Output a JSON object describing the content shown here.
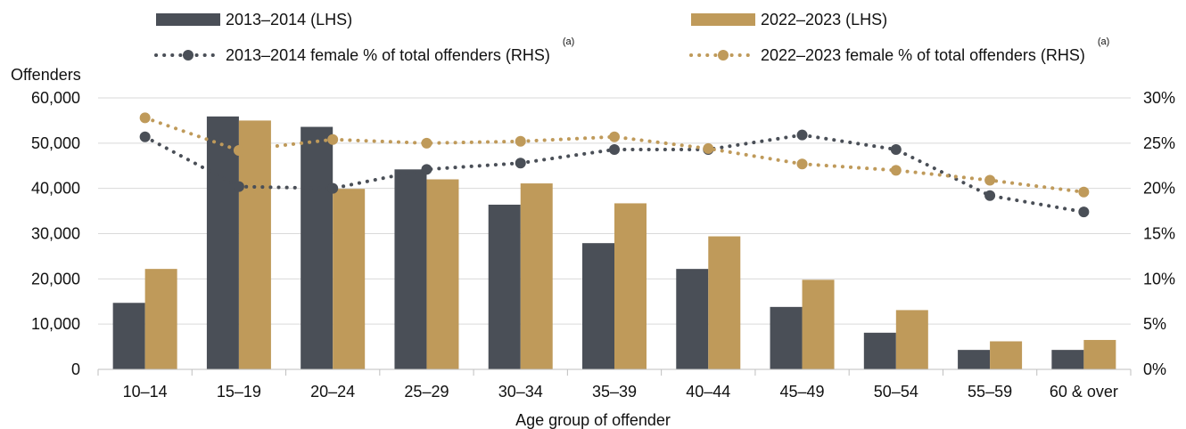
{
  "chart_data": {
    "type": "bar",
    "xlabel": "Age group of offender",
    "ylabel": "Offenders",
    "categories": [
      "10–14",
      "15–19",
      "20–24",
      "25–29",
      "30–34",
      "35–39",
      "40–44",
      "45–49",
      "50–54",
      "55–59",
      "60 & over"
    ],
    "ylim": [
      0,
      60000
    ],
    "y2lim": [
      0,
      30
    ],
    "y_ticks": [
      "0",
      "10,000",
      "20,000",
      "30,000",
      "40,000",
      "50,000",
      "60,000"
    ],
    "y2_ticks": [
      "0%",
      "5%",
      "10%",
      "15%",
      "20%",
      "25%",
      "30%"
    ],
    "series": [
      {
        "name": "2013–2014  (LHS)",
        "kind": "bar",
        "axis": "left",
        "color": "#4a4f57",
        "values": [
          14700,
          55900,
          53600,
          44200,
          36400,
          27900,
          22200,
          13800,
          8100,
          4300,
          4300
        ]
      },
      {
        "name": "2022–2023  (LHS)",
        "kind": "bar",
        "axis": "left",
        "color": "#bf9a5a",
        "values": [
          22200,
          55000,
          39900,
          42000,
          41100,
          36700,
          29400,
          19800,
          13100,
          6200,
          6500
        ]
      },
      {
        "name": "2013–2014  female  % of total offenders  (RHS)",
        "sup": "(a)",
        "kind": "line",
        "axis": "right",
        "color": "#4a4f57",
        "values": [
          25.7,
          20.2,
          20.0,
          22.1,
          22.8,
          24.3,
          24.3,
          25.9,
          24.3,
          19.2,
          17.4
        ]
      },
      {
        "name": "2022–2023  female  % of total offenders  (RHS)",
        "sup": "(a)",
        "kind": "line",
        "axis": "right",
        "color": "#bf9a5a",
        "values": [
          27.8,
          24.2,
          25.4,
          25.0,
          25.2,
          25.7,
          24.4,
          22.7,
          22.0,
          20.9,
          19.6
        ]
      }
    ],
    "grid": true,
    "legend_position": "top"
  }
}
